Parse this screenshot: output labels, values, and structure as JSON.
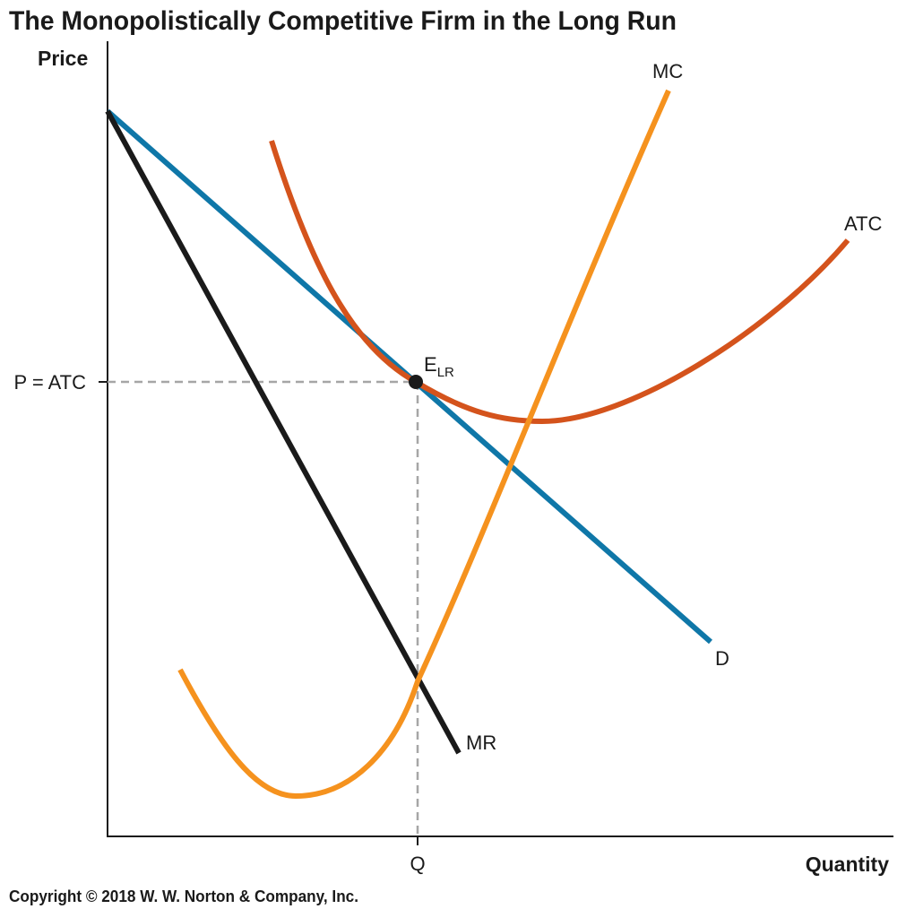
{
  "title": "The Monopolistically Competitive Firm in the Long Run",
  "copyright": "Copyright © 2018 W. W. Norton & Company, Inc.",
  "axes": {
    "y_label": "Price",
    "x_label": "Quantity",
    "y_tick": "P = ATC",
    "x_tick": "Q"
  },
  "curves": {
    "mc": {
      "label": "MC",
      "color": "#f5921e"
    },
    "atc": {
      "label": "ATC",
      "color": "#d4531c"
    },
    "demand": {
      "label": "D",
      "color": "#0f77a8"
    },
    "mr": {
      "label": "MR",
      "color": "#1a1a1a"
    }
  },
  "equilibrium": {
    "label": "E",
    "subscript": "LR"
  },
  "guide_color": "#a6a6a6"
}
